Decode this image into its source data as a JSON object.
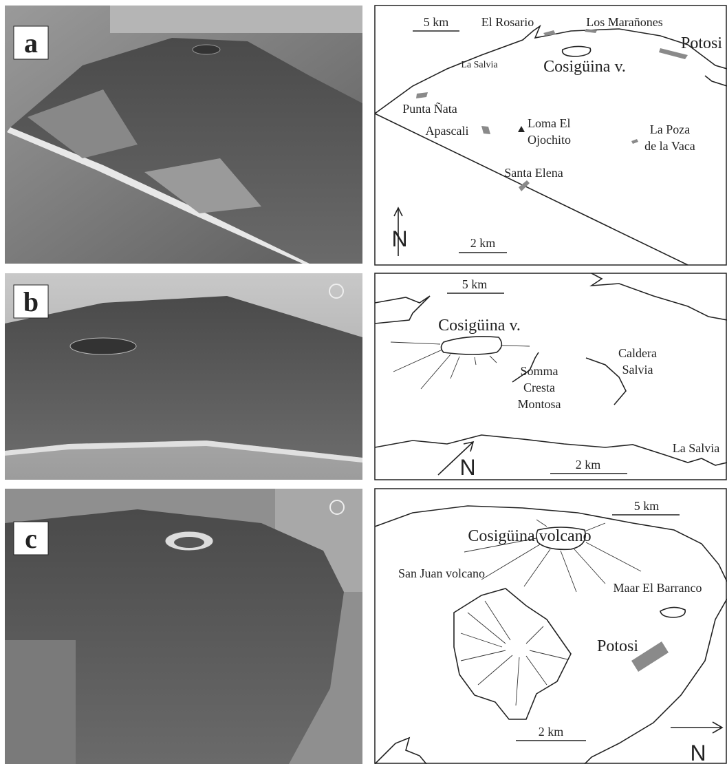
{
  "panels": [
    {
      "label": "a",
      "scale_top": "5 km",
      "scale_bottom": "2 km",
      "north": "N",
      "places": [
        [
          "El Rosario"
        ],
        [
          "Los Marañones"
        ],
        [
          "Potosi"
        ],
        [
          "La Salvia"
        ],
        [
          "Cosigüina v."
        ],
        [
          "Punta Ñata"
        ],
        [
          "Loma El",
          "Ojochito"
        ],
        [
          "Apascali"
        ],
        [
          "La Poza",
          "de la Vaca"
        ],
        [
          "Santa Elena"
        ]
      ]
    },
    {
      "label": "b",
      "scale_top": "5 km",
      "scale_bottom": "2 km",
      "north": "N",
      "places": [
        [
          "Cosigüina v."
        ],
        [
          "Somma",
          "Cresta",
          "Montosa"
        ],
        [
          "Caldera",
          "Salvia"
        ],
        [
          "La Salvia"
        ]
      ]
    },
    {
      "label": "c",
      "scale_top": "5 km",
      "scale_bottom": "2 km",
      "north": "N",
      "places": [
        [
          "Cosigüina volcano"
        ],
        [
          "San Juan volcano"
        ],
        [
          "Maar El Barranco"
        ],
        [
          "Potosi"
        ]
      ]
    }
  ]
}
